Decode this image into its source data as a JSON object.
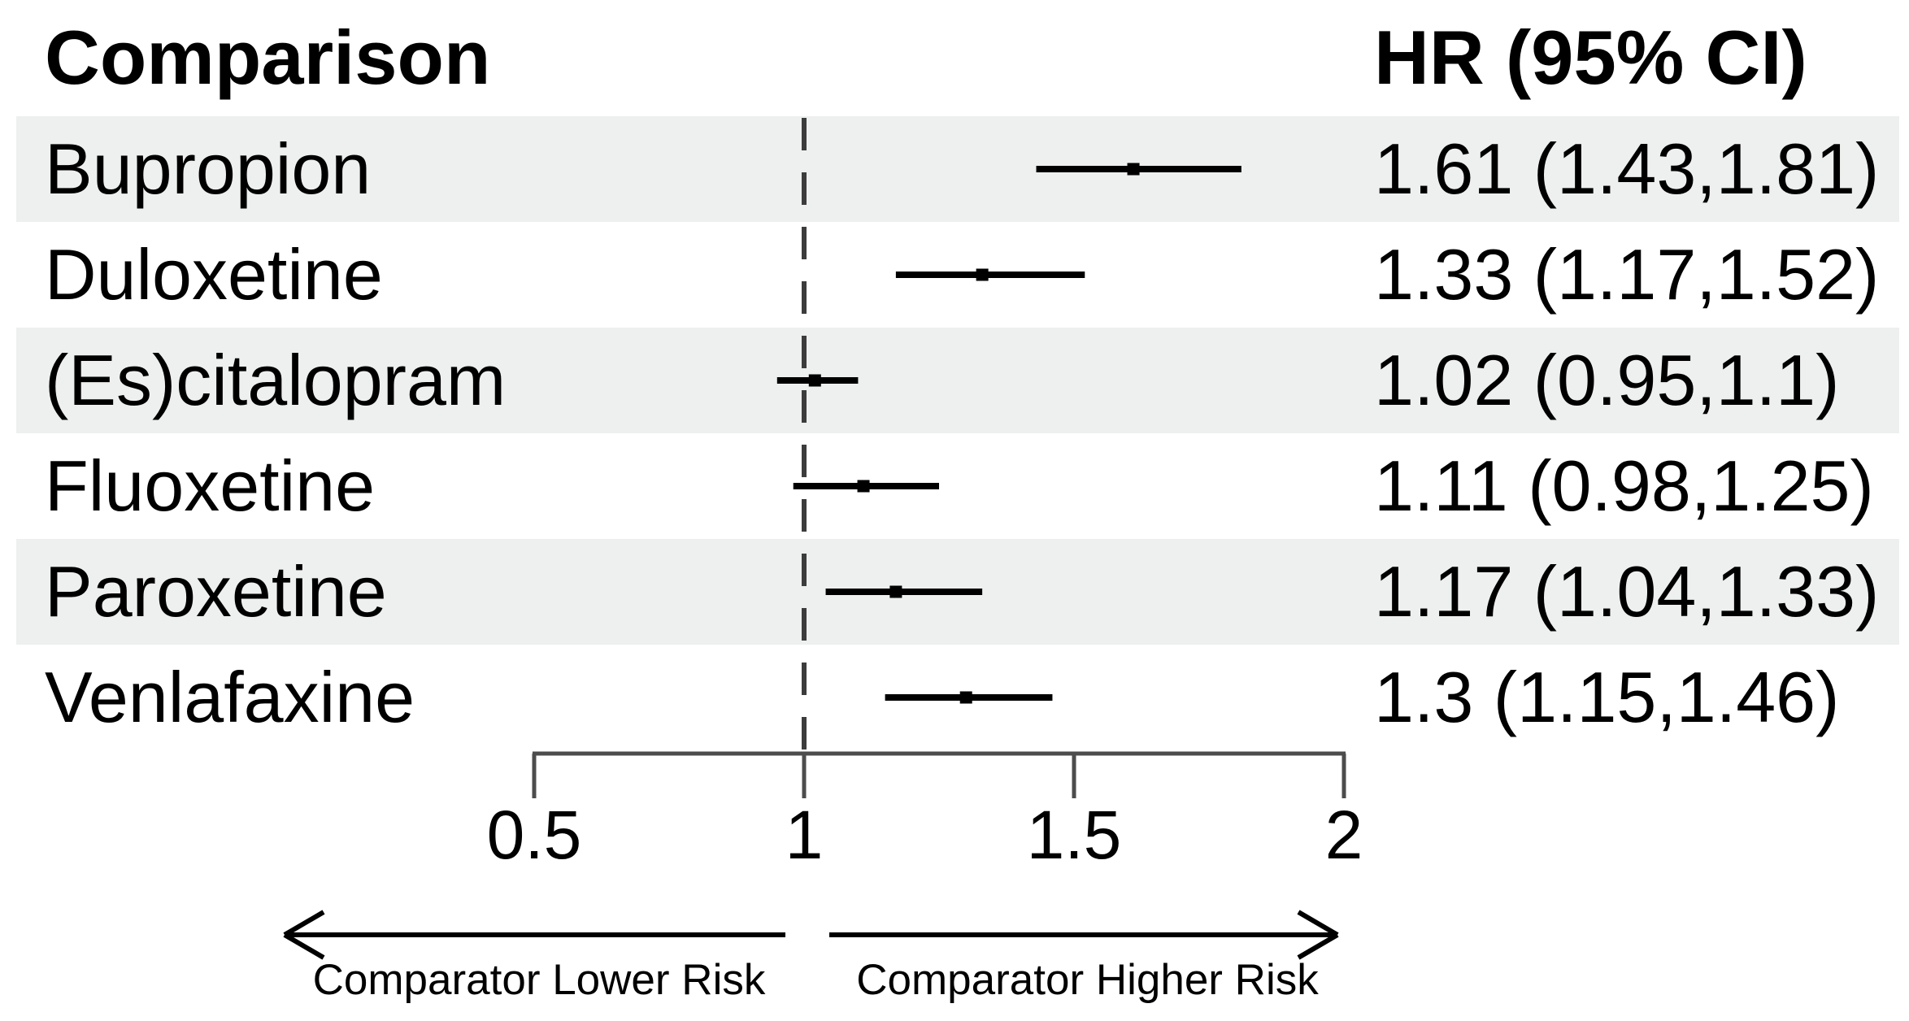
{
  "header": {
    "comparison": "Comparison",
    "hr_ci": "HR (95% CI)"
  },
  "chart_data": {
    "type": "forest_plot",
    "title": "",
    "xlabel": "",
    "rows": [
      {
        "label": "Bupropion",
        "hr": 1.61,
        "ci_low": 1.43,
        "ci_high": 1.81,
        "display": "1.61 (1.43,1.81)"
      },
      {
        "label": "Duloxetine",
        "hr": 1.33,
        "ci_low": 1.17,
        "ci_high": 1.52,
        "display": "1.33 (1.17,1.52)"
      },
      {
        "label": "(Es)citalopram",
        "hr": 1.02,
        "ci_low": 0.95,
        "ci_high": 1.1,
        "display": "1.02 (0.95,1.1)"
      },
      {
        "label": "Fluoxetine",
        "hr": 1.11,
        "ci_low": 0.98,
        "ci_high": 1.25,
        "display": "1.11 (0.98,1.25)"
      },
      {
        "label": "Paroxetine",
        "hr": 1.17,
        "ci_low": 1.04,
        "ci_high": 1.33,
        "display": "1.17 (1.04,1.33)"
      },
      {
        "label": "Venlafaxine",
        "hr": 1.3,
        "ci_low": 1.15,
        "ci_high": 1.46,
        "display": "1.3 (1.15,1.46)"
      }
    ],
    "axis": {
      "min": 0.5,
      "max": 2,
      "ticks": [
        0.5,
        1,
        1.5,
        2
      ],
      "tick_labels": [
        "0.5",
        "1",
        "1.5",
        "2"
      ],
      "reference_line": 1
    },
    "annotations": {
      "left_arrow_label": "Comparator Lower Risk",
      "right_arrow_label": "Comparator Higher Risk"
    },
    "colors": {
      "band": "#edf0ee",
      "ci_line": "#000000",
      "marker": "#000000",
      "axis": "#4c4c4c",
      "reference_dash": "#3c3c3c",
      "text": "#000000"
    }
  }
}
